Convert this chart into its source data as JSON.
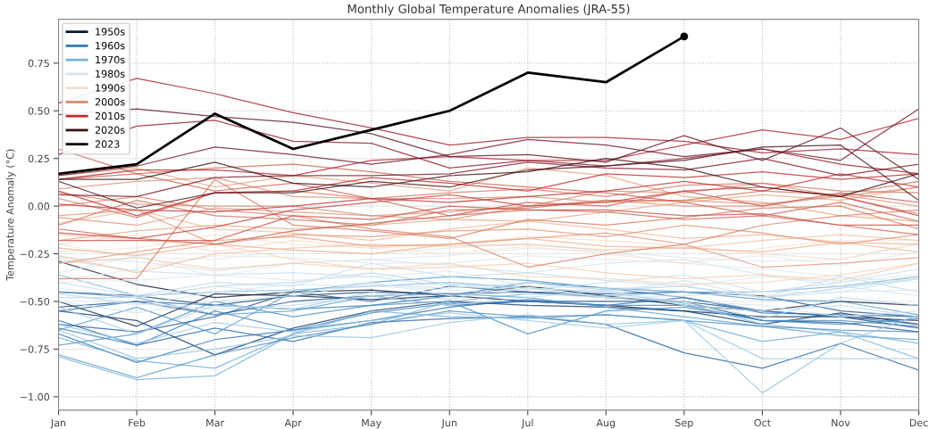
{
  "chart_data": {
    "type": "line",
    "title": "Monthly Global Temperature Anomalies (JRA-55)",
    "ylabel": "Temperature Anomaly (°C)",
    "categories": [
      "Jan",
      "Feb",
      "Mar",
      "Apr",
      "May",
      "Jun",
      "Jul",
      "Aug",
      "Sep",
      "Oct",
      "Nov",
      "Dec"
    ],
    "ylim": [
      -1.07,
      0.98
    ],
    "yticks": [
      {
        "value": -1.0,
        "label": "−1.00"
      },
      {
        "value": -0.75,
        "label": "−0.75"
      },
      {
        "value": -0.5,
        "label": "−0.50"
      },
      {
        "value": -0.25,
        "label": "−0.25"
      },
      {
        "value": 0,
        "label": "0.00"
      },
      {
        "value": 0.25,
        "label": "0.25"
      },
      {
        "value": 0.5,
        "label": "0.50"
      },
      {
        "value": 0.75,
        "label": "0.75"
      }
    ],
    "grid": true,
    "legend": "top left",
    "line_style": "solid",
    "series": [
      {
        "name": "1950s",
        "color": "#0b1a33",
        "values": [
          -0.29,
          -0.41,
          -0.48,
          -0.45,
          -0.44,
          -0.47,
          -0.42,
          -0.47,
          -0.52,
          -0.55,
          -0.5,
          -0.52
        ]
      },
      {
        "color": "#10264a",
        "values": [
          -0.5,
          -0.63,
          -0.46,
          -0.47,
          -0.49,
          -0.47,
          -0.5,
          -0.52,
          -0.55,
          -0.58,
          -0.58,
          -0.6
        ]
      },
      {
        "color": "#153a66",
        "values": [
          -0.55,
          -0.6,
          -0.78,
          -0.64,
          -0.55,
          -0.5,
          -0.52,
          -0.53,
          -0.55,
          -0.62,
          -0.56,
          -0.62
        ]
      },
      {
        "color": "#1a4577",
        "values": [
          -0.45,
          -0.47,
          -0.52,
          -0.47,
          -0.45,
          -0.46,
          -0.45,
          -0.48,
          -0.5,
          -0.55,
          -0.58,
          -0.64
        ]
      },
      {
        "color": "#1f4f87",
        "values": [
          -0.53,
          -0.5,
          -0.57,
          -0.5,
          -0.47,
          -0.52,
          -0.5,
          -0.5,
          -0.5,
          -0.6,
          -0.61,
          -0.66
        ]
      },
      {
        "color": "#245a96",
        "values": [
          -0.62,
          -0.66,
          -0.58,
          -0.45,
          -0.5,
          -0.42,
          -0.45,
          -0.46,
          -0.45,
          -0.47,
          -0.55,
          -0.58
        ]
      },
      {
        "color": "#2a64a3",
        "values": [
          -0.6,
          -0.73,
          -0.64,
          -0.71,
          -0.61,
          -0.59,
          -0.58,
          -0.62,
          -0.77,
          -0.85,
          -0.72,
          -0.86
        ]
      },
      {
        "color": "#3070ae",
        "values": [
          -0.67,
          -0.82,
          -0.7,
          -0.65,
          -0.6,
          -0.53,
          -0.49,
          -0.52,
          -0.48,
          -0.56,
          -0.57,
          -0.58
        ]
      },
      {
        "name": "1960s",
        "color": "#3679b6",
        "values": [
          -0.55,
          -0.5,
          -0.52,
          -0.54,
          -0.52,
          -0.47,
          -0.4,
          -0.43,
          -0.48,
          -0.55,
          -0.58,
          -0.62
        ]
      },
      {
        "color": "#3f86c0",
        "values": [
          -0.64,
          -0.73,
          -0.55,
          -0.65,
          -0.56,
          -0.51,
          -0.5,
          -0.52,
          -0.52,
          -0.6,
          -0.62,
          -0.59
        ]
      },
      {
        "color": "#4a90c6",
        "values": [
          -0.73,
          -0.67,
          -0.5,
          -0.58,
          -0.52,
          -0.5,
          -0.67,
          -0.55,
          -0.53,
          -0.6,
          -0.6,
          -0.63
        ]
      },
      {
        "color": "#5599cb",
        "values": [
          -0.65,
          -0.53,
          -0.67,
          -0.45,
          -0.4,
          -0.37,
          -0.39,
          -0.43,
          -0.45,
          -0.49,
          -0.5,
          -0.57
        ]
      },
      {
        "color": "#62a3d0",
        "values": [
          -0.45,
          -0.48,
          -0.57,
          -0.55,
          -0.47,
          -0.46,
          -0.48,
          -0.53,
          -0.58,
          -0.63,
          -0.68,
          -0.7
        ]
      },
      {
        "color": "#6eabd4",
        "values": [
          -0.69,
          -0.81,
          -0.85,
          -0.67,
          -0.55,
          -0.58,
          -0.59,
          -0.57,
          -0.6,
          -0.71,
          -0.66,
          -0.72
        ]
      },
      {
        "name": "1970s",
        "color": "#7ab3d8",
        "values": [
          -0.79,
          -0.91,
          -0.89,
          -0.67,
          -0.62,
          -0.5,
          -0.46,
          -0.47,
          -0.45,
          -0.45,
          -0.42,
          -0.37
        ]
      },
      {
        "color": "#86bbdc",
        "values": [
          -0.36,
          -0.47,
          -0.45,
          -0.44,
          -0.42,
          -0.4,
          -0.43,
          -0.45,
          -0.51,
          -0.62,
          -0.66,
          -0.8
        ]
      },
      {
        "color": "#4f8fc3",
        "values": [
          -0.78,
          -0.9,
          -0.78,
          -0.69,
          -0.62,
          -0.55,
          -0.58,
          -0.57,
          -0.6,
          -0.63,
          -0.65,
          -0.66
        ]
      },
      {
        "color": "#9dcae3",
        "values": [
          -0.62,
          -0.72,
          -0.61,
          -0.66,
          -0.6,
          -0.56,
          -0.6,
          -0.64,
          -0.6,
          -0.8,
          -0.8,
          -0.8
        ]
      },
      {
        "color": "#92c3e0",
        "values": [
          -0.65,
          -0.8,
          -0.75,
          -0.68,
          -0.69,
          -0.61,
          -0.57,
          -0.62,
          -0.6,
          -0.98,
          -0.72,
          -0.57
        ]
      },
      {
        "color": "#b4d7ea",
        "values": [
          -0.48,
          -0.48,
          -0.42,
          -0.4,
          -0.35,
          -0.41,
          -0.43,
          -0.48,
          -0.5,
          -0.59,
          -0.48,
          -0.52
        ]
      },
      {
        "color": "#bfdded",
        "values": [
          -0.46,
          -0.51,
          -0.54,
          -0.52,
          -0.47,
          -0.52,
          -0.48,
          -0.44,
          -0.52,
          -0.55,
          -0.52,
          -0.58
        ]
      },
      {
        "color": "#a9d1e6",
        "values": [
          -0.53,
          -0.67,
          -0.52,
          -0.54,
          -0.45,
          -0.49,
          -0.4,
          -0.44,
          -0.42,
          -0.48,
          -0.43,
          -0.38
        ]
      },
      {
        "color": "#c6dcec",
        "values": [
          -0.4,
          -0.47,
          -0.4,
          -0.42,
          -0.3,
          -0.37,
          -0.35,
          -0.39,
          -0.42,
          -0.48,
          -0.37,
          -0.45
        ]
      },
      {
        "color": "#cbdfed",
        "values": [
          -0.28,
          -0.34,
          -0.36,
          -0.35,
          -0.37,
          -0.42,
          -0.44,
          -0.4,
          -0.36,
          -0.45,
          -0.4,
          -0.33
        ]
      },
      {
        "color": "#cfe2ee",
        "values": [
          -0.5,
          -0.56,
          -0.5,
          -0.47,
          -0.41,
          -0.43,
          -0.4,
          -0.45,
          -0.39,
          -0.48,
          -0.45,
          -0.38
        ]
      },
      {
        "color": "#d3e4ef",
        "values": [
          -0.27,
          -0.29,
          -0.34,
          -0.3,
          -0.28,
          -0.31,
          -0.35,
          -0.3,
          -0.28,
          -0.36,
          -0.42,
          -0.47
        ]
      },
      {
        "name": "1980s",
        "color": "#d7e6f0",
        "values": [
          -0.43,
          -0.48,
          -0.42,
          -0.46,
          -0.4,
          -0.47,
          -0.43,
          -0.45,
          -0.5,
          -0.52,
          -0.58,
          -0.55
        ]
      },
      {
        "color": "#dae8f0",
        "values": [
          -0.46,
          -0.52,
          -0.45,
          -0.41,
          -0.42,
          -0.44,
          -0.46,
          -0.48,
          -0.47,
          -0.45,
          -0.45,
          -0.44
        ]
      },
      {
        "color": "#dde9f0",
        "values": [
          -0.4,
          -0.39,
          -0.36,
          -0.39,
          -0.37,
          -0.34,
          -0.42,
          -0.43,
          -0.42,
          -0.37,
          -0.4,
          -0.36
        ]
      },
      {
        "color": "#e0eaef",
        "values": [
          -0.35,
          -0.26,
          -0.37,
          -0.3,
          -0.28,
          -0.26,
          -0.22,
          -0.24,
          -0.27,
          -0.29,
          -0.28,
          -0.19
        ]
      },
      {
        "color": "#e3eaed",
        "values": [
          -0.2,
          -0.27,
          -0.28,
          -0.23,
          -0.25,
          -0.22,
          -0.2,
          -0.24,
          -0.3,
          -0.33,
          -0.37,
          -0.4
        ]
      },
      {
        "color": "#e6eaea",
        "values": [
          -0.39,
          -0.33,
          -0.26,
          -0.27,
          -0.3,
          -0.3,
          -0.26,
          -0.28,
          -0.3,
          -0.26,
          -0.31,
          -0.24
        ]
      },
      {
        "color": "#f7e4d6",
        "values": [
          -0.24,
          -0.22,
          -0.15,
          -0.2,
          -0.22,
          -0.25,
          -0.21,
          -0.25,
          -0.3,
          -0.22,
          -0.18,
          -0.18
        ]
      },
      {
        "name": "1990s",
        "color": "#f6dcc7",
        "values": [
          -0.2,
          -0.15,
          -0.24,
          -0.18,
          -0.22,
          -0.2,
          -0.16,
          -0.18,
          -0.21,
          -0.25,
          -0.28,
          -0.2
        ]
      },
      {
        "color": "#f5d4bb",
        "values": [
          -0.15,
          -0.18,
          -0.2,
          -0.28,
          -0.33,
          -0.3,
          -0.37,
          -0.38,
          -0.41,
          -0.4,
          -0.36,
          -0.3
        ]
      },
      {
        "color": "#f3ccb0",
        "values": [
          -0.3,
          -0.27,
          -0.33,
          -0.3,
          -0.33,
          -0.32,
          -0.3,
          -0.35,
          -0.38,
          -0.36,
          -0.39,
          -0.3
        ]
      },
      {
        "color": "#f1c3a5",
        "values": [
          -0.26,
          -0.35,
          -0.25,
          -0.22,
          -0.2,
          -0.21,
          -0.2,
          -0.23,
          -0.22,
          -0.18,
          -0.15,
          -0.18
        ]
      },
      {
        "color": "#efba9a",
        "values": [
          -0.09,
          -0.02,
          -0.12,
          -0.14,
          -0.18,
          -0.12,
          -0.08,
          -0.12,
          -0.17,
          -0.15,
          -0.19,
          -0.24
        ]
      },
      {
        "color": "#ecb190",
        "values": [
          -0.22,
          -0.26,
          -0.2,
          -0.23,
          -0.25,
          -0.2,
          -0.17,
          -0.21,
          -0.22,
          -0.24,
          -0.19,
          -0.2
        ]
      },
      {
        "color": "#e9a886",
        "values": [
          -0.18,
          -0.13,
          -0.1,
          -0.12,
          -0.1,
          -0.07,
          -0.08,
          -0.03,
          0.02,
          0.06,
          0.03,
          0.1
        ]
      },
      {
        "color": "#e59f7d",
        "values": [
          0.16,
          0.2,
          0.1,
          0.16,
          0.12,
          0.08,
          0.2,
          0.16,
          0.05,
          0.02,
          -0.05,
          -0.08
        ]
      },
      {
        "color": "#e29675",
        "values": [
          -0.05,
          -0.02,
          -0.2,
          -0.15,
          -0.16,
          -0.13,
          -0.12,
          -0.16,
          -0.1,
          -0.14,
          -0.2,
          -0.15
        ]
      },
      {
        "color": "#e39a7e",
        "values": [
          -0.3,
          -0.24,
          -0.18,
          -0.16,
          -0.21,
          -0.2,
          -0.17,
          -0.14,
          -0.2,
          -0.32,
          -0.3,
          -0.27
        ]
      },
      {
        "color": "#e0947a",
        "values": [
          -0.06,
          -0.1,
          -0.01,
          -0.03,
          -0.05,
          -0.03,
          0.0,
          0.03,
          0.0,
          0.0,
          0.06,
          0.0
        ]
      },
      {
        "color": "#dd8e75",
        "values": [
          0.09,
          0.13,
          0.15,
          0.05,
          0.04,
          0.04,
          0.05,
          0.02,
          0.03,
          0.01,
          0.05,
          -0.04
        ]
      },
      {
        "name": "2000s",
        "color": "#d98e6e",
        "values": [
          0.07,
          0.01,
          0.0,
          0.0,
          -0.05,
          -0.07,
          0.0,
          0.08,
          0.07,
          0.12,
          0.05,
          0.1
        ]
      },
      {
        "color": "#d8806a",
        "values": [
          0.0,
          0.05,
          -0.02,
          -0.05,
          -0.12,
          -0.16,
          -0.32,
          -0.25,
          -0.2,
          -0.1,
          -0.05,
          -0.02
        ]
      },
      {
        "color": "#d47863",
        "values": [
          0.04,
          -0.06,
          0.07,
          0.08,
          0.04,
          0.07,
          0.09,
          0.05,
          0.11,
          0.12,
          0.08,
          0.07
        ]
      },
      {
        "color": "#d0705d",
        "values": [
          -0.1,
          0.03,
          -0.05,
          -0.07,
          -0.1,
          -0.02,
          -0.01,
          0.03,
          0.03,
          0.08,
          0.06,
          0.13
        ]
      },
      {
        "color": "#cc6857",
        "values": [
          0.3,
          0.17,
          0.08,
          0.12,
          0.04,
          -0.05,
          -0.02,
          -0.03,
          -0.07,
          -0.05,
          -0.1,
          -0.15
        ]
      },
      {
        "color": "#d77a5e",
        "values": [
          -0.38,
          -0.38,
          0.14,
          -0.1,
          -0.13,
          -0.17,
          -0.07,
          -0.1,
          -0.06,
          -0.01,
          0.0,
          -0.12
        ]
      },
      {
        "color": "#c86052",
        "values": [
          -0.12,
          -0.17,
          -0.2,
          -0.13,
          -0.09,
          -0.05,
          0.02,
          0.0,
          0.08,
          0.0,
          0.07,
          0.02
        ]
      },
      {
        "color": "#d0614f",
        "values": [
          0.14,
          0.17,
          0.2,
          0.22,
          0.18,
          0.13,
          0.1,
          0.07,
          0.02,
          -0.05,
          0.02,
          -0.08
        ]
      },
      {
        "color": "#cb5148",
        "values": [
          -0.18,
          -0.18,
          -0.18,
          -0.05,
          -0.07,
          0.0,
          -0.02,
          -0.02,
          -0.05,
          -0.04,
          -0.1,
          -0.1
        ]
      },
      {
        "color": "#c64242",
        "values": [
          -0.14,
          -0.17,
          -0.11,
          -0.02,
          0.02,
          0.06,
          0.0,
          0.02,
          0.08,
          0.1,
          0.05,
          -0.05
        ]
      },
      {
        "color": "#c1363a",
        "values": [
          0.01,
          -0.02,
          -0.03,
          0.0,
          0.04,
          0.02,
          0.05,
          0.08,
          0.13,
          0.08,
          0.17,
          0.1
        ]
      },
      {
        "name": "2010s",
        "color": "#c12a2a",
        "values": [
          0.08,
          -0.05,
          0.07,
          0.08,
          0.15,
          0.12,
          0.08,
          0.17,
          0.15,
          0.18,
          0.14,
          0.17
        ]
      },
      {
        "color": "#b12330",
        "values": [
          0.14,
          0.19,
          0.19,
          0.16,
          0.24,
          0.26,
          0.24,
          0.24,
          0.32,
          0.4,
          0.35,
          0.46
        ]
      },
      {
        "color": "#a11d2d",
        "values": [
          0.54,
          0.67,
          0.59,
          0.49,
          0.41,
          0.32,
          0.36,
          0.36,
          0.34,
          0.28,
          0.3,
          0.27
        ]
      },
      {
        "color": "#901a2b",
        "values": [
          0.27,
          0.42,
          0.45,
          0.34,
          0.33,
          0.2,
          0.24,
          0.21,
          0.25,
          0.3,
          0.22,
          0.17
        ]
      },
      {
        "color": "#801627",
        "values": [
          0.06,
          0.05,
          0.15,
          0.16,
          0.16,
          0.17,
          0.23,
          0.2,
          0.19,
          0.25,
          0.16,
          0.22
        ]
      },
      {
        "color": "#701425",
        "values": [
          0.16,
          0.21,
          0.31,
          0.27,
          0.22,
          0.27,
          0.35,
          0.32,
          0.26,
          0.3,
          0.24,
          0.51
        ]
      },
      {
        "color": "#5a1520",
        "values": [
          0.48,
          0.51,
          0.47,
          0.44,
          0.38,
          0.26,
          0.27,
          0.23,
          0.37,
          0.24,
          0.41,
          0.14
        ]
      },
      {
        "color": "#48111b",
        "values": [
          0.13,
          -0.01,
          0.07,
          0.07,
          0.13,
          0.1,
          0.19,
          0.21,
          0.24,
          0.31,
          0.32,
          0.03
        ]
      },
      {
        "name": "2020s",
        "color": "#3a0f14",
        "values": [
          0.14,
          0.14,
          0.23,
          0.12,
          0.1,
          0.16,
          0.18,
          0.25,
          0.2,
          0.1,
          0.05,
          0.17
        ]
      },
      {
        "name": "2023",
        "color": "#000000",
        "values": [
          0.17,
          0.22,
          0.485,
          0.3,
          0.4,
          0.5,
          0.7,
          0.65,
          0.89,
          null,
          null,
          null
        ]
      },
      {
        "type": "scatter",
        "color": "#000000",
        "marker": "circle",
        "x": [
          "Sep"
        ],
        "values": [
          0.89
        ]
      }
    ]
  }
}
